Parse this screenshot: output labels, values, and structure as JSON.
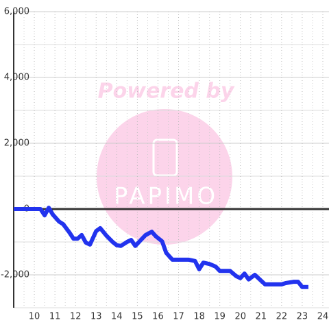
{
  "chart_data": {
    "type": "line",
    "watermark": {
      "line1": "Powered by",
      "line2": "PAPIMO"
    },
    "x": [
      9.0,
      10.3,
      10.5,
      10.7,
      10.9,
      11.2,
      11.4,
      11.7,
      11.9,
      12.1,
      12.3,
      12.5,
      12.7,
      13.0,
      13.2,
      13.5,
      13.8,
      14.0,
      14.2,
      14.5,
      14.7,
      14.9,
      15.2,
      15.4,
      15.7,
      15.9,
      16.2,
      16.4,
      16.7,
      17.5,
      17.8,
      18.0,
      18.2,
      18.5,
      18.8,
      19.0,
      19.5,
      19.8,
      20.0,
      20.2,
      20.4,
      20.7,
      21.2,
      22.0,
      22.2,
      22.6,
      22.8,
      23.0,
      23.3
    ],
    "series": [
      {
        "color": "#2233ee",
        "values": [
          0,
          0,
          -190,
          40,
          -170,
          -380,
          -460,
          -710,
          -900,
          -900,
          -790,
          -1020,
          -1080,
          -670,
          -580,
          -810,
          -1000,
          -1100,
          -1120,
          -1000,
          -940,
          -1120,
          -920,
          -790,
          -690,
          -830,
          -980,
          -1330,
          -1540,
          -1540,
          -1580,
          -1830,
          -1630,
          -1670,
          -1750,
          -1880,
          -1880,
          -2040,
          -2100,
          -1960,
          -2140,
          -2000,
          -2290,
          -2290,
          -2250,
          -2210,
          -2210,
          -2370,
          -2370
        ]
      }
    ],
    "xlim": [
      9,
      24.3
    ],
    "ylim": [
      -3000,
      6000
    ],
    "xticks": [
      10,
      11,
      12,
      13,
      14,
      15,
      16,
      17,
      18,
      19,
      20,
      21,
      22,
      23,
      24
    ],
    "yticks": [
      {
        "value": -2000,
        "label": "-2,000"
      },
      0,
      {
        "value": 2000,
        "label": "2,000"
      },
      {
        "value": 4000,
        "label": "4,000"
      },
      {
        "value": 6000,
        "label": "6,000"
      }
    ],
    "grid": true
  }
}
